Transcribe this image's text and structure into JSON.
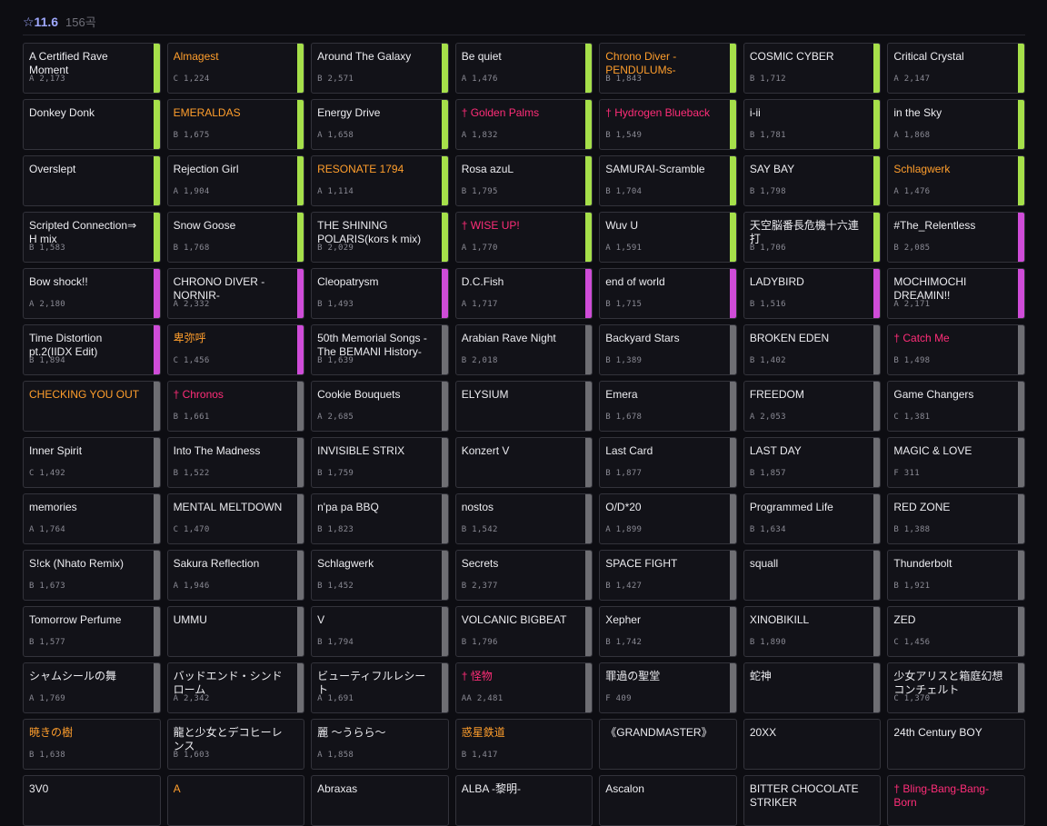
{
  "header": {
    "level": "☆11.6",
    "count": "156곡"
  },
  "colors": {
    "bar_green": "#a6e04a",
    "bar_purple": "#cf4cd8",
    "bar_gray": "#6e6e73",
    "title_orange": "#ff9e2c",
    "title_pink": "#ff2d78",
    "level_color": "#9fa8ff"
  },
  "songs": [
    {
      "title": "A Certified Rave Moment",
      "meta": "A 2,173",
      "bar": "green",
      "tc": "white"
    },
    {
      "title": "Almagest",
      "meta": "C 1,224",
      "bar": "green",
      "tc": "orange"
    },
    {
      "title": "Around The Galaxy",
      "meta": "B 2,571",
      "bar": "green",
      "tc": "white"
    },
    {
      "title": "Be quiet",
      "meta": "A 1,476",
      "bar": "green",
      "tc": "white"
    },
    {
      "title": "Chrono Diver -PENDULUMs-",
      "meta": "B 1,843",
      "bar": "green",
      "tc": "orange"
    },
    {
      "title": "COSMIC CYBER",
      "meta": "B 1,712",
      "bar": "green",
      "tc": "white"
    },
    {
      "title": "Critical Crystal",
      "meta": "A 2,147",
      "bar": "green",
      "tc": "white"
    },
    {
      "title": "Donkey Donk",
      "meta": "",
      "bar": "green",
      "tc": "white"
    },
    {
      "title": "EMERALDAS",
      "meta": "B 1,675",
      "bar": "green",
      "tc": "orange"
    },
    {
      "title": "Energy Drive",
      "meta": "A 1,658",
      "bar": "green",
      "tc": "white"
    },
    {
      "title": "† Golden Palms",
      "meta": "A 1,832",
      "bar": "green",
      "tc": "pink"
    },
    {
      "title": "† Hydrogen Blueback",
      "meta": "B 1,549",
      "bar": "green",
      "tc": "pink"
    },
    {
      "title": "i-ii",
      "meta": "B 1,781",
      "bar": "green",
      "tc": "white"
    },
    {
      "title": "in the Sky",
      "meta": "A 1,868",
      "bar": "green",
      "tc": "white"
    },
    {
      "title": "Overslept",
      "meta": "",
      "bar": "green",
      "tc": "white"
    },
    {
      "title": "Rejection Girl",
      "meta": "A 1,904",
      "bar": "green",
      "tc": "white"
    },
    {
      "title": "RESONATE 1794",
      "meta": "A 1,114",
      "bar": "green",
      "tc": "orange"
    },
    {
      "title": "Rosa azuL",
      "meta": "B 1,795",
      "bar": "green",
      "tc": "white"
    },
    {
      "title": "SAMURAI-Scramble",
      "meta": "B 1,704",
      "bar": "green",
      "tc": "white"
    },
    {
      "title": "SAY BAY",
      "meta": "B 1,798",
      "bar": "green",
      "tc": "white"
    },
    {
      "title": "Schlagwerk",
      "meta": "A 1,476",
      "bar": "green",
      "tc": "orange"
    },
    {
      "title": "Scripted Connection⇒ H mix",
      "meta": "B 1,583",
      "bar": "green",
      "tc": "white"
    },
    {
      "title": "Snow Goose",
      "meta": "B 1,768",
      "bar": "green",
      "tc": "white"
    },
    {
      "title": "THE SHINING POLARIS(kors k mix)",
      "meta": "B 2,029",
      "bar": "green",
      "tc": "white"
    },
    {
      "title": "† WISE UP!",
      "meta": "A 1,770",
      "bar": "green",
      "tc": "pink"
    },
    {
      "title": "Wuv U",
      "meta": "A 1,591",
      "bar": "green",
      "tc": "white"
    },
    {
      "title": "天空脳番長危機十六連打",
      "meta": "B 1,706",
      "bar": "green",
      "tc": "white"
    },
    {
      "title": "#The_Relentless",
      "meta": "B 2,085",
      "bar": "purple",
      "tc": "white"
    },
    {
      "title": "Bow shock!!",
      "meta": "A 2,180",
      "bar": "purple",
      "tc": "white"
    },
    {
      "title": "CHRONO DIVER -NORNIR-",
      "meta": "A 2,332",
      "bar": "purple",
      "tc": "white"
    },
    {
      "title": "Cleopatrysm",
      "meta": "B 1,493",
      "bar": "purple",
      "tc": "white"
    },
    {
      "title": "D.C.Fish",
      "meta": "A 1,717",
      "bar": "purple",
      "tc": "white"
    },
    {
      "title": "end of world",
      "meta": "B 1,715",
      "bar": "purple",
      "tc": "white"
    },
    {
      "title": "LADYBIRD",
      "meta": "B 1,516",
      "bar": "purple",
      "tc": "white"
    },
    {
      "title": "MOCHIMOCHI DREAMIN!!",
      "meta": "A 2,171",
      "bar": "purple",
      "tc": "white"
    },
    {
      "title": "Time Distortion pt.2(IIDX Edit)",
      "meta": "B 1,894",
      "bar": "purple",
      "tc": "white"
    },
    {
      "title": "卑弥呼",
      "meta": "C 1,456",
      "bar": "purple",
      "tc": "orange"
    },
    {
      "title": "50th Memorial Songs -The BEMANI History-",
      "meta": "B 1,639",
      "bar": "gray",
      "tc": "white"
    },
    {
      "title": "Arabian Rave Night",
      "meta": "B 2,018",
      "bar": "gray",
      "tc": "white"
    },
    {
      "title": "Backyard Stars",
      "meta": "B 1,389",
      "bar": "gray",
      "tc": "white"
    },
    {
      "title": "BROKEN EDEN",
      "meta": "B 1,402",
      "bar": "gray",
      "tc": "white"
    },
    {
      "title": "† Catch Me",
      "meta": "B 1,498",
      "bar": "gray",
      "tc": "pink"
    },
    {
      "title": "CHECKING YOU OUT",
      "meta": "",
      "bar": "gray",
      "tc": "orange"
    },
    {
      "title": "† Chronos",
      "meta": "B 1,661",
      "bar": "gray",
      "tc": "pink"
    },
    {
      "title": "Cookie Bouquets",
      "meta": "A 2,685",
      "bar": "gray",
      "tc": "white"
    },
    {
      "title": "ELYSIUM",
      "meta": "",
      "bar": "gray",
      "tc": "white"
    },
    {
      "title": "Emera",
      "meta": "B 1,678",
      "bar": "gray",
      "tc": "white"
    },
    {
      "title": "FREEDOM",
      "meta": "A 2,053",
      "bar": "gray",
      "tc": "white"
    },
    {
      "title": "Game Changers",
      "meta": "C 1,381",
      "bar": "gray",
      "tc": "white"
    },
    {
      "title": "Inner Spirit",
      "meta": "C 1,492",
      "bar": "gray",
      "tc": "white"
    },
    {
      "title": "Into The Madness",
      "meta": "B 1,522",
      "bar": "gray",
      "tc": "white"
    },
    {
      "title": "INVISIBLE STRIX",
      "meta": "B 1,759",
      "bar": "gray",
      "tc": "white"
    },
    {
      "title": "Konzert V",
      "meta": "",
      "bar": "gray",
      "tc": "white"
    },
    {
      "title": "Last Card",
      "meta": "B 1,877",
      "bar": "gray",
      "tc": "white"
    },
    {
      "title": "LAST DAY",
      "meta": "B 1,857",
      "bar": "gray",
      "tc": "white"
    },
    {
      "title": "MAGIC & LOVE",
      "meta": "F 311",
      "bar": "gray",
      "tc": "white"
    },
    {
      "title": "memories",
      "meta": "A 1,764",
      "bar": "gray",
      "tc": "white"
    },
    {
      "title": "MENTAL MELTDOWN",
      "meta": "C 1,470",
      "bar": "gray",
      "tc": "white"
    },
    {
      "title": "n'pa pa BBQ",
      "meta": "B 1,823",
      "bar": "gray",
      "tc": "white"
    },
    {
      "title": "nostos",
      "meta": "B 1,542",
      "bar": "gray",
      "tc": "white"
    },
    {
      "title": "O/D*20",
      "meta": "A 1,899",
      "bar": "gray",
      "tc": "white"
    },
    {
      "title": "Programmed Life",
      "meta": "B 1,634",
      "bar": "gray",
      "tc": "white"
    },
    {
      "title": "RED ZONE",
      "meta": "B 1,388",
      "bar": "gray",
      "tc": "white"
    },
    {
      "title": "S!ck (Nhato Remix)",
      "meta": "B 1,673",
      "bar": "gray",
      "tc": "white"
    },
    {
      "title": "Sakura Reflection",
      "meta": "A 1,946",
      "bar": "gray",
      "tc": "white"
    },
    {
      "title": "Schlagwerk",
      "meta": "B 1,452",
      "bar": "gray",
      "tc": "white"
    },
    {
      "title": "Secrets",
      "meta": "B 2,377",
      "bar": "gray",
      "tc": "white"
    },
    {
      "title": "SPACE FIGHT",
      "meta": "B 1,427",
      "bar": "gray",
      "tc": "white"
    },
    {
      "title": "squall",
      "meta": "",
      "bar": "gray",
      "tc": "white"
    },
    {
      "title": "Thunderbolt",
      "meta": "B 1,921",
      "bar": "gray",
      "tc": "white"
    },
    {
      "title": "Tomorrow Perfume",
      "meta": "B 1,577",
      "bar": "gray",
      "tc": "white"
    },
    {
      "title": "UMMU",
      "meta": "",
      "bar": "gray",
      "tc": "white"
    },
    {
      "title": "V",
      "meta": "B 1,794",
      "bar": "gray",
      "tc": "white"
    },
    {
      "title": "VOLCANIC BIGBEAT",
      "meta": "B 1,796",
      "bar": "gray",
      "tc": "white"
    },
    {
      "title": "Xepher",
      "meta": "B 1,742",
      "bar": "gray",
      "tc": "white"
    },
    {
      "title": "XINOBIKILL",
      "meta": "B 1,890",
      "bar": "gray",
      "tc": "white"
    },
    {
      "title": "ZED",
      "meta": "C 1,456",
      "bar": "gray",
      "tc": "white"
    },
    {
      "title": "シャムシールの舞",
      "meta": "A 1,769",
      "bar": "gray",
      "tc": "white"
    },
    {
      "title": "バッドエンド・シンドローム",
      "meta": "A 2,342",
      "bar": "gray",
      "tc": "white"
    },
    {
      "title": "ビューティフルレシート",
      "meta": "A 1,691",
      "bar": "gray",
      "tc": "white"
    },
    {
      "title": "† 怪物",
      "meta": "AA 2,481",
      "bar": "gray",
      "tc": "pink"
    },
    {
      "title": "罪過の聖堂",
      "meta": "F 409",
      "bar": "gray",
      "tc": "white"
    },
    {
      "title": "蛇神",
      "meta": "",
      "bar": "gray",
      "tc": "white"
    },
    {
      "title": "少女アリスと箱庭幻想コンチェルト",
      "meta": "C 1,370",
      "bar": "gray",
      "tc": "white"
    },
    {
      "title": "暁きの樹",
      "meta": "B 1,638",
      "bar": "none",
      "tc": "orange"
    },
    {
      "title": "龍と少女とデコヒーレンス",
      "meta": "B 1,603",
      "bar": "none",
      "tc": "white"
    },
    {
      "title": "麗 ～うらら～",
      "meta": "A 1,858",
      "bar": "none",
      "tc": "white"
    },
    {
      "title": "惑星鉄道",
      "meta": "B 1,417",
      "bar": "none",
      "tc": "orange"
    },
    {
      "title": "《GRANDMASTER》",
      "meta": "",
      "bar": "none",
      "tc": "white"
    },
    {
      "title": "20XX",
      "meta": "",
      "bar": "none",
      "tc": "white"
    },
    {
      "title": "24th Century BOY",
      "meta": "",
      "bar": "none",
      "tc": "white"
    },
    {
      "title": "3V0",
      "meta": "",
      "bar": "none",
      "tc": "white"
    },
    {
      "title": "A",
      "meta": "",
      "bar": "none",
      "tc": "orange"
    },
    {
      "title": "Abraxas",
      "meta": "",
      "bar": "none",
      "tc": "white"
    },
    {
      "title": "ALBA -黎明-",
      "meta": "",
      "bar": "none",
      "tc": "white"
    },
    {
      "title": "Ascalon",
      "meta": "",
      "bar": "none",
      "tc": "white"
    },
    {
      "title": "BITTER CHOCOLATE STRIKER",
      "meta": "",
      "bar": "none",
      "tc": "white"
    },
    {
      "title": "† Bling-Bang-Bang-Born",
      "meta": "",
      "bar": "none",
      "tc": "pink"
    }
  ]
}
